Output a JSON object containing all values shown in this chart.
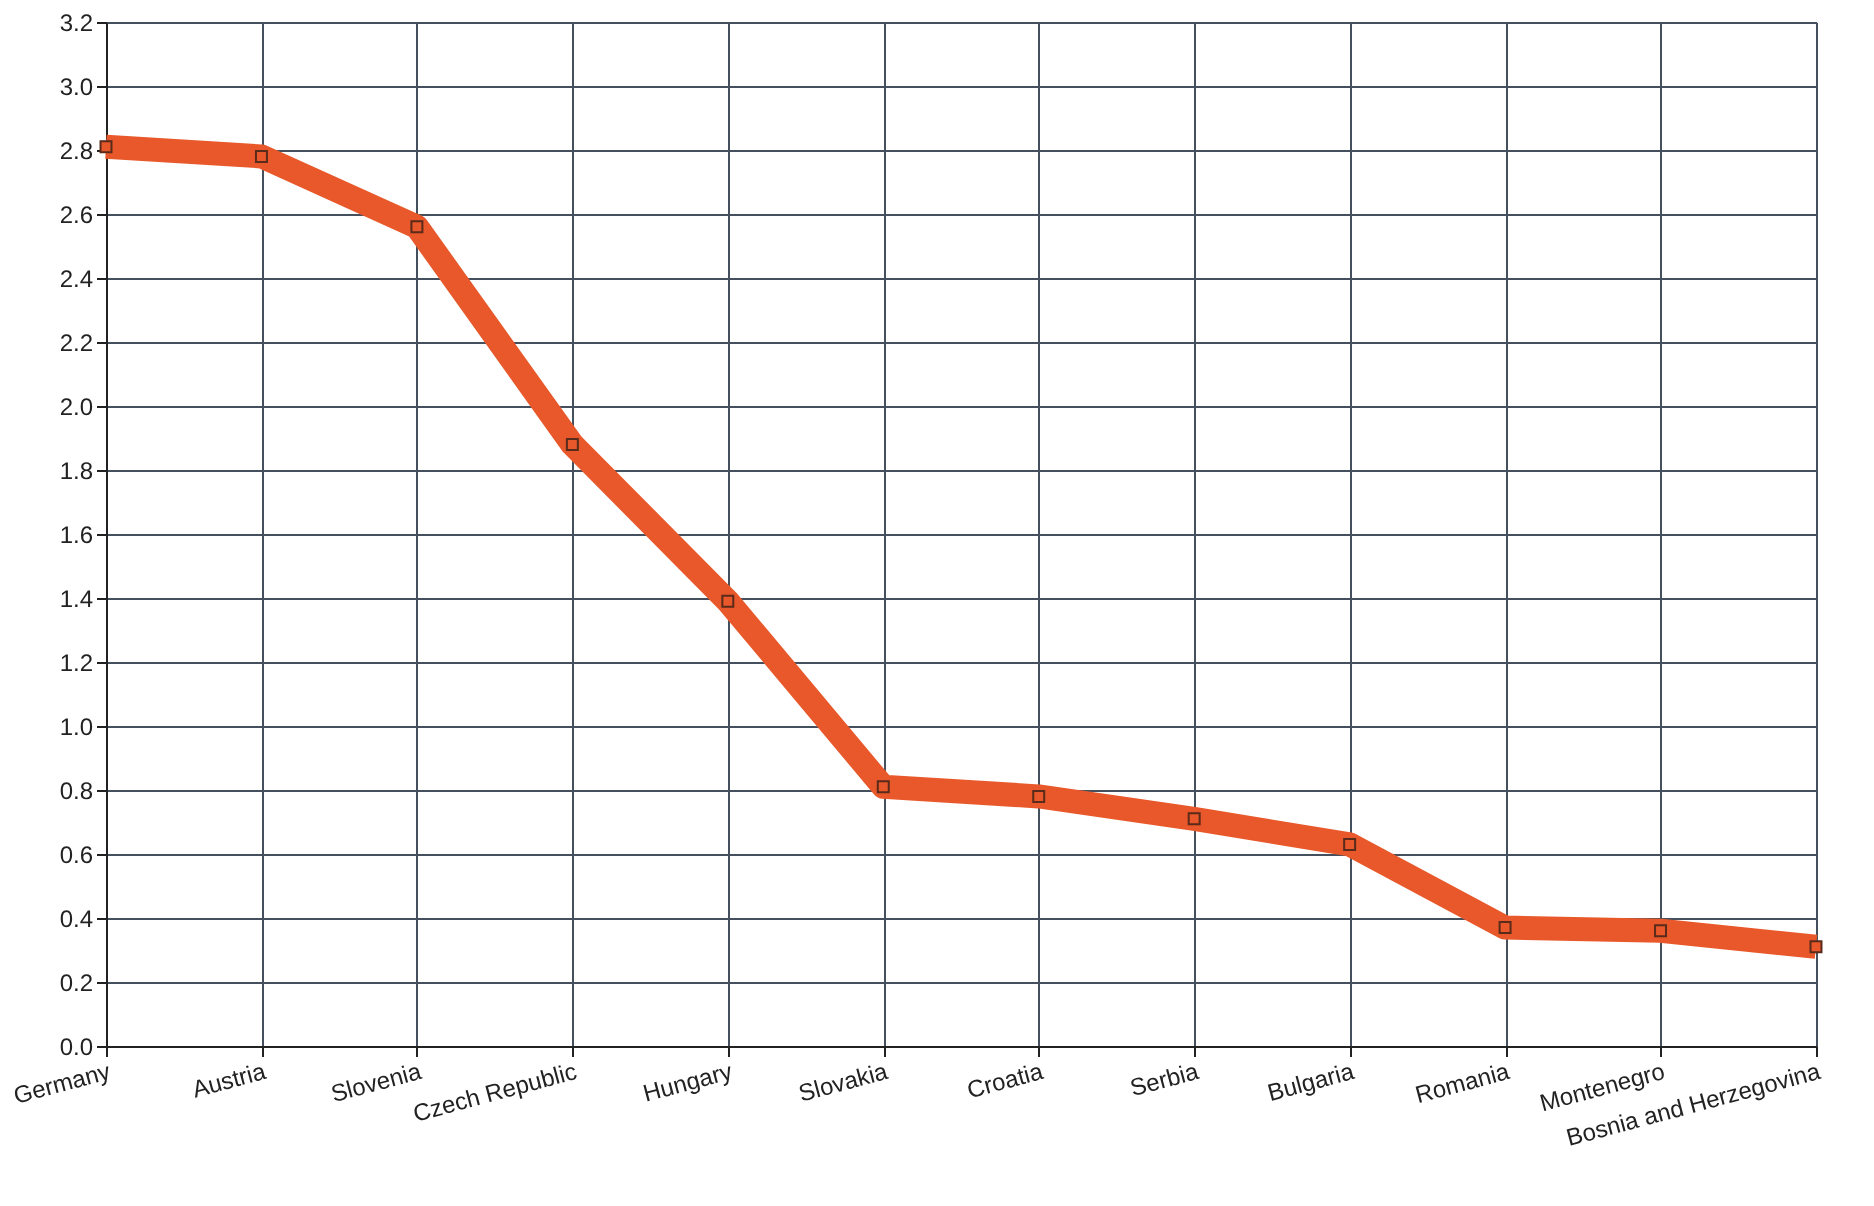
{
  "chart_data": {
    "type": "line",
    "categories": [
      "Germany",
      "Austria",
      "Slovenia",
      "Czech Republic",
      "Hungary",
      "Slovakia",
      "Croatia",
      "Serbia",
      "Bulgaria",
      "Romania",
      "Montenegro",
      "Bosnia and Herzegovina"
    ],
    "series": [
      {
        "color": "#e8582a",
        "values": [
          2.81,
          2.78,
          2.56,
          1.88,
          1.39,
          0.81,
          0.78,
          0.71,
          0.63,
          0.37,
          0.36,
          0.31
        ]
      }
    ],
    "ylim": [
      0,
      3.2
    ],
    "yticks": [
      {
        "value": 0,
        "label": "0.0"
      },
      {
        "value": 0.2,
        "label": "0.2"
      },
      {
        "value": 0.4,
        "label": "0.4"
      },
      {
        "value": 0.6,
        "label": "0.6"
      },
      {
        "value": 0.8,
        "label": "0.8"
      },
      {
        "value": 1,
        "label": "1.0"
      },
      {
        "value": 1.2,
        "label": "1.2"
      },
      {
        "value": 1.4,
        "label": "1.4"
      },
      {
        "value": 1.6,
        "label": "1.6"
      },
      {
        "value": 1.8,
        "label": "1.8"
      },
      {
        "value": 2,
        "label": "2.0"
      },
      {
        "value": 2.2,
        "label": "2.2"
      },
      {
        "value": 2.4,
        "label": "2.4"
      },
      {
        "value": 2.6,
        "label": "2.6"
      },
      {
        "value": 2.8,
        "label": "2.8"
      },
      {
        "value": 3,
        "label": "3.0"
      },
      {
        "value": 3.2,
        "label": "3.2"
      }
    ],
    "grid": true,
    "marker": "square",
    "line_style": "solid"
  }
}
